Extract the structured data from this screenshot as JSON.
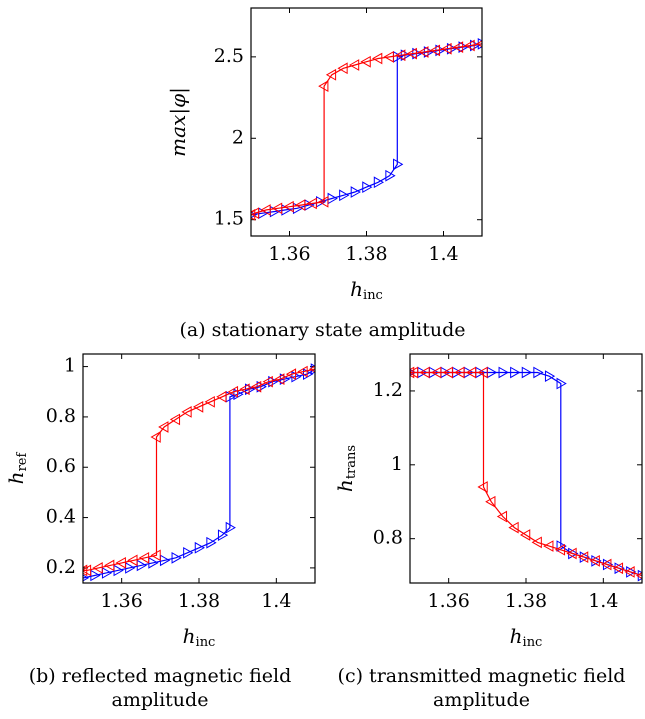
{
  "colors": {
    "increasing": "#0000ff",
    "decreasing": "#ff0000"
  },
  "captions": {
    "a": "(a) stationary state amplitude",
    "b_line1": "(b) reflected magnetic field",
    "b_line2": "amplitude",
    "c_line1": "(c) transmitted magnetic field",
    "c_line2": "amplitude"
  },
  "chart_data": [
    {
      "id": "a",
      "type": "line",
      "xlabel": "h_inc",
      "ylabel": "max|φ|",
      "xlim": [
        1.35,
        1.41
      ],
      "ylim": [
        1.4,
        2.8
      ],
      "xticks": [
        1.36,
        1.38,
        1.4
      ],
      "yticks": [
        1.5,
        2,
        2.5
      ],
      "xtick_labels": [
        "1.36",
        "1.38",
        "1.4"
      ],
      "ytick_labels": [
        "1.5",
        "2",
        "2.5"
      ],
      "grid": false,
      "series": [
        {
          "direction": "increasing",
          "marker": "triangle-right",
          "x": [
            1.35,
            1.353,
            1.356,
            1.359,
            1.362,
            1.365,
            1.368,
            1.371,
            1.374,
            1.377,
            1.38,
            1.383,
            1.386,
            1.388,
            1.388,
            1.39,
            1.393,
            1.396,
            1.399,
            1.402,
            1.405,
            1.408,
            1.41
          ],
          "y": [
            1.53,
            1.54,
            1.55,
            1.56,
            1.57,
            1.59,
            1.61,
            1.63,
            1.65,
            1.67,
            1.7,
            1.73,
            1.77,
            1.84,
            2.5,
            2.51,
            2.52,
            2.53,
            2.54,
            2.55,
            2.56,
            2.57,
            2.58
          ]
        },
        {
          "direction": "decreasing",
          "marker": "triangle-left",
          "x": [
            1.41,
            1.407,
            1.404,
            1.401,
            1.398,
            1.395,
            1.392,
            1.389,
            1.386,
            1.383,
            1.38,
            1.377,
            1.374,
            1.371,
            1.369,
            1.369,
            1.366,
            1.363,
            1.36,
            1.357,
            1.354,
            1.351,
            1.35
          ],
          "y": [
            2.58,
            2.57,
            2.56,
            2.55,
            2.54,
            2.53,
            2.52,
            2.51,
            2.5,
            2.49,
            2.47,
            2.45,
            2.43,
            2.39,
            2.32,
            1.61,
            1.6,
            1.59,
            1.58,
            1.57,
            1.56,
            1.54,
            1.53
          ]
        }
      ]
    },
    {
      "id": "b",
      "type": "line",
      "xlabel": "h_inc",
      "ylabel": "h_ref",
      "xlim": [
        1.35,
        1.41
      ],
      "ylim": [
        0.14,
        1.05
      ],
      "xticks": [
        1.36,
        1.38,
        1.4
      ],
      "yticks": [
        0.2,
        0.4,
        0.6,
        0.8,
        1
      ],
      "xtick_labels": [
        "1.36",
        "1.38",
        "1.4"
      ],
      "ytick_labels": [
        "0.2",
        "0.4",
        "0.6",
        "0.8",
        "1"
      ],
      "grid": false,
      "series": [
        {
          "direction": "increasing",
          "marker": "triangle-right",
          "x": [
            1.35,
            1.353,
            1.356,
            1.359,
            1.362,
            1.365,
            1.368,
            1.371,
            1.374,
            1.377,
            1.38,
            1.383,
            1.386,
            1.388,
            1.388,
            1.39,
            1.393,
            1.396,
            1.399,
            1.402,
            1.405,
            1.408,
            1.41
          ],
          "y": [
            0.16,
            0.17,
            0.18,
            0.19,
            0.2,
            0.21,
            0.22,
            0.23,
            0.24,
            0.26,
            0.28,
            0.3,
            0.33,
            0.36,
            0.88,
            0.89,
            0.91,
            0.92,
            0.94,
            0.95,
            0.96,
            0.97,
            0.99
          ]
        },
        {
          "direction": "decreasing",
          "marker": "triangle-left",
          "x": [
            1.41,
            1.407,
            1.404,
            1.401,
            1.398,
            1.395,
            1.392,
            1.389,
            1.386,
            1.383,
            1.38,
            1.377,
            1.374,
            1.371,
            1.369,
            1.369,
            1.366,
            1.363,
            1.36,
            1.357,
            1.354,
            1.351,
            1.35
          ],
          "y": [
            0.99,
            0.98,
            0.97,
            0.95,
            0.94,
            0.92,
            0.91,
            0.9,
            0.88,
            0.86,
            0.84,
            0.82,
            0.79,
            0.76,
            0.72,
            0.25,
            0.24,
            0.23,
            0.22,
            0.21,
            0.2,
            0.19,
            0.19
          ]
        }
      ]
    },
    {
      "id": "c",
      "type": "line",
      "xlabel": "h_inc",
      "ylabel": "h_trans",
      "xlim": [
        1.35,
        1.41
      ],
      "ylim": [
        0.68,
        1.3
      ],
      "xticks": [
        1.36,
        1.38,
        1.4
      ],
      "yticks": [
        0.8,
        1,
        1.2
      ],
      "xtick_labels": [
        "1.36",
        "1.38",
        "1.4"
      ],
      "ytick_labels": [
        "0.8",
        "1",
        "1.2"
      ],
      "grid": false,
      "series": [
        {
          "direction": "increasing",
          "marker": "triangle-right",
          "x": [
            1.35,
            1.353,
            1.356,
            1.359,
            1.362,
            1.365,
            1.368,
            1.371,
            1.374,
            1.377,
            1.38,
            1.383,
            1.386,
            1.389,
            1.389,
            1.392,
            1.395,
            1.398,
            1.401,
            1.404,
            1.407,
            1.41
          ],
          "y": [
            1.25,
            1.25,
            1.25,
            1.25,
            1.25,
            1.25,
            1.25,
            1.25,
            1.25,
            1.25,
            1.25,
            1.25,
            1.24,
            1.22,
            0.78,
            0.76,
            0.75,
            0.74,
            0.73,
            0.72,
            0.71,
            0.7
          ]
        },
        {
          "direction": "decreasing",
          "marker": "triangle-left",
          "x": [
            1.41,
            1.407,
            1.404,
            1.401,
            1.398,
            1.395,
            1.392,
            1.389,
            1.386,
            1.383,
            1.38,
            1.377,
            1.374,
            1.371,
            1.369,
            1.369,
            1.366,
            1.363,
            1.36,
            1.357,
            1.354,
            1.351,
            1.35
          ],
          "y": [
            0.7,
            0.71,
            0.72,
            0.73,
            0.74,
            0.75,
            0.76,
            0.77,
            0.78,
            0.79,
            0.81,
            0.83,
            0.86,
            0.9,
            0.94,
            1.25,
            1.25,
            1.25,
            1.25,
            1.25,
            1.25,
            1.25,
            1.25
          ]
        }
      ]
    }
  ]
}
